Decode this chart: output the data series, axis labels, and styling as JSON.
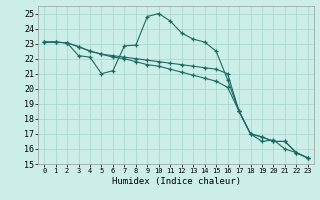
{
  "xlabel": "Humidex (Indice chaleur)",
  "bg_color": "#cceee8",
  "grid_color": "#aad8d0",
  "line_color": "#1a6b5e",
  "xlim": [
    -0.5,
    23.5
  ],
  "ylim": [
    15,
    25.5
  ],
  "xticks": [
    0,
    1,
    2,
    3,
    4,
    5,
    6,
    7,
    8,
    9,
    10,
    11,
    12,
    13,
    14,
    15,
    16,
    17,
    18,
    19,
    20,
    21,
    22,
    23
  ],
  "yticks": [
    15,
    16,
    17,
    18,
    19,
    20,
    21,
    22,
    23,
    24,
    25
  ],
  "series1_x": [
    0,
    1,
    2,
    3,
    4,
    5,
    6,
    7,
    8,
    9,
    10,
    11,
    12,
    13,
    14,
    15,
    16,
    17,
    18,
    19,
    20,
    21,
    22,
    23
  ],
  "series1_y": [
    23.1,
    23.1,
    23.05,
    22.2,
    22.1,
    21.0,
    21.2,
    22.85,
    22.9,
    24.8,
    25.0,
    24.5,
    23.7,
    23.3,
    23.1,
    22.5,
    20.6,
    18.5,
    17.0,
    16.5,
    16.6,
    16.0,
    15.75,
    15.4
  ],
  "series2_x": [
    0,
    1,
    2,
    3,
    4,
    5,
    6,
    7,
    8,
    9,
    10,
    11,
    12,
    13,
    14,
    15,
    16,
    17,
    18,
    19,
    20,
    21,
    22,
    23
  ],
  "series2_y": [
    23.1,
    23.1,
    23.05,
    22.8,
    22.5,
    22.3,
    22.2,
    22.1,
    22.0,
    21.9,
    21.8,
    21.7,
    21.6,
    21.5,
    21.4,
    21.3,
    21.0,
    18.5,
    17.0,
    16.8,
    16.5,
    16.5,
    15.75,
    15.4
  ],
  "series3_x": [
    0,
    1,
    2,
    3,
    4,
    5,
    6,
    7,
    8,
    9,
    10,
    11,
    12,
    13,
    14,
    15,
    16,
    17,
    18,
    19,
    20,
    21,
    22,
    23
  ],
  "series3_y": [
    23.1,
    23.1,
    23.05,
    22.8,
    22.5,
    22.3,
    22.1,
    22.0,
    21.8,
    21.6,
    21.5,
    21.3,
    21.1,
    20.9,
    20.7,
    20.5,
    20.1,
    18.5,
    17.0,
    16.8,
    16.5,
    16.5,
    15.75,
    15.4
  ]
}
